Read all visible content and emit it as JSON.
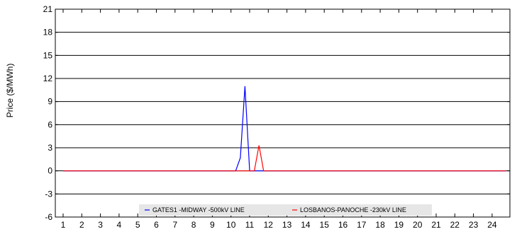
{
  "chart_data": {
    "type": "line",
    "title": "",
    "xlabel": "",
    "ylabel": "Price ($/MWh)",
    "ylim": [
      -6,
      21
    ],
    "yticks": [
      -6,
      -3,
      0,
      3,
      6,
      9,
      12,
      15,
      18,
      21
    ],
    "xlim": [
      1,
      24.8
    ],
    "xticks": [
      1,
      2,
      3,
      4,
      5,
      6,
      7,
      8,
      9,
      10,
      11,
      12,
      13,
      14,
      15,
      16,
      17,
      18,
      19,
      20,
      21,
      22,
      23,
      24
    ],
    "grid": "horizontal",
    "legend_position": "bottom-center",
    "series": [
      {
        "name": "GATES1 -MIDWAY -500kV LINE",
        "color": "#0000ff",
        "x": [
          1,
          10.25,
          10.5,
          10.75,
          11.0,
          11.25,
          24.75
        ],
        "y": [
          0,
          0,
          1.7,
          11.0,
          0,
          0,
          0
        ]
      },
      {
        "name": "LOSBANOS-PANOCHE -230kV LINE",
        "color": "#ff0000",
        "x": [
          1,
          11.25,
          11.5,
          11.75,
          12.0,
          24.75
        ],
        "y": [
          0,
          0,
          3.3,
          0,
          0,
          0
        ]
      }
    ]
  }
}
